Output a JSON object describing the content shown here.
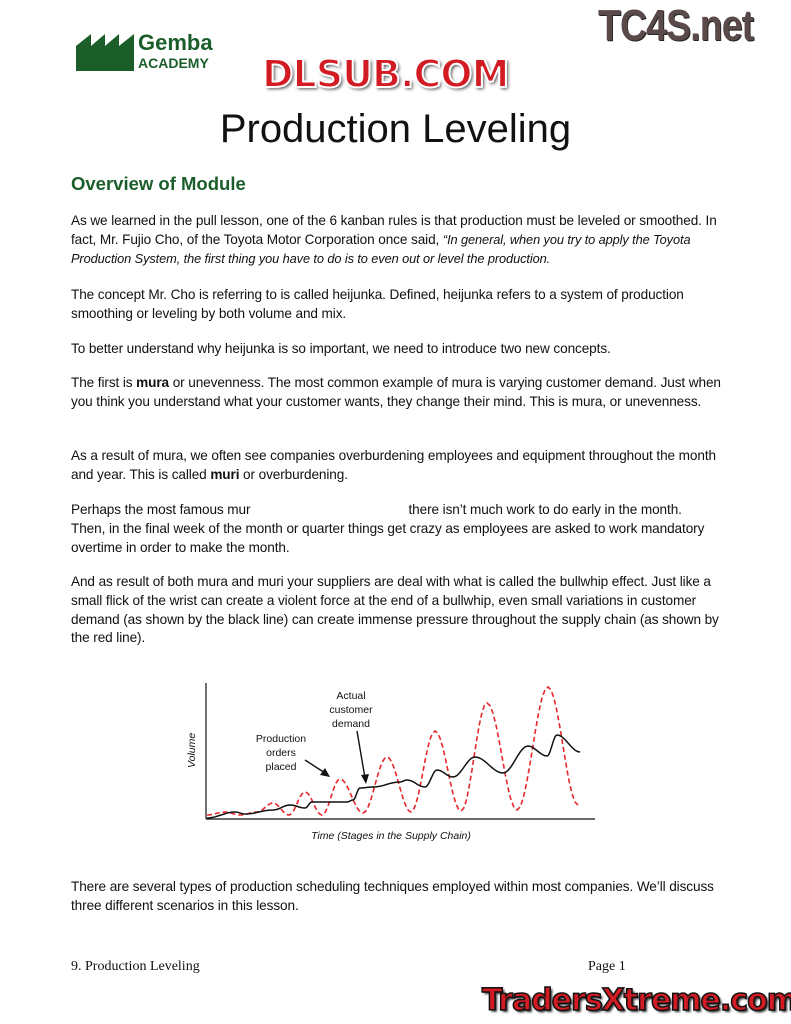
{
  "logo": {
    "line1": "Gemba",
    "line2": "ACADEMY",
    "color": "#1b5e2a"
  },
  "watermarks": {
    "top_right": "TC4S.net",
    "middle": "DLSUB.COM",
    "bottom_right": "TradersXtreme.com"
  },
  "title": "Production Leveling",
  "section_heading": "Overview of Module",
  "paragraphs": {
    "p1_a": "As we learned in the pull lesson, one of the 6 kanban rules is that production must be leveled or smoothed.  In fact, Mr. Fujio Cho, of the Toyota Motor Corporation once said, ",
    "p1_quote": "“In general, when you try to apply the Toyota Production System, the first thing you have to do is to even out or level the production.",
    "p2": "The concept Mr. Cho is referring to is called heijunka.  Defined, heijunka refers to a system of production smoothing or leveling by both volume and mix.",
    "p3": "To better understand why heijunka is so important, we need to introduce two new concepts.",
    "p4_a": "The first is ",
    "p4_bold": "mura",
    "p4_b": " or unevenness.  The most common example of mura is varying customer demand.  Just when you think you understand what your customer wants, they change their mind.  This is mura, or unevenness.",
    "p5_a": "As a result of mura, we often see companies overburdening employees and equipment throughout the month and year.  This is called ",
    "p5_bold": "muri",
    "p5_b": " or overburdening.",
    "p6": "Perhaps the most famous mur                                           there isn’t much work to do early in the month.  Then, in the final week of the month or quarter things get crazy as employees are asked to work mandatory overtime in order to make the month.",
    "p7": "And as result of both mura and muri your suppliers are deal with what is called the bullwhip effect.  Just like a small flick of the wrist can create a violent force at the end of a bullwhip, even small variations in customer demand (as shown by the black line) can create immense pressure throughout the supply chain (as shown by the red line).",
    "p8": "There are several types of production scheduling techniques employed within most companies.  We’ll discuss three different scenarios in this lesson."
  },
  "figure": {
    "ylabel": "Volume",
    "xlabel": "Time (Stages in the Supply Chain)",
    "label_demand": [
      "Actual",
      "customer",
      "demand"
    ],
    "label_orders": [
      "Production",
      "orders",
      "placed"
    ],
    "demand_color": "#111111",
    "orders_color": "#e8262b"
  },
  "footer": {
    "left": "9. Production Leveling",
    "right": "Page 1"
  }
}
